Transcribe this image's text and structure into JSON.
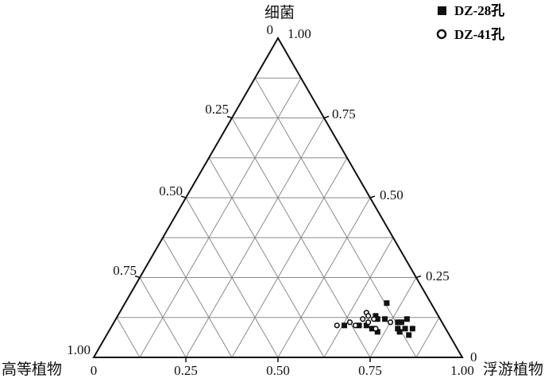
{
  "chart_data": {
    "type": "ternary-scatter",
    "apex_labels": {
      "top": "细菌",
      "left": "高等植物",
      "right": "浮游植物"
    },
    "ticks": {
      "bottom": [
        "0",
        "0.25",
        "0.50",
        "0.75",
        "1.00"
      ],
      "left_edge": [
        "0",
        "0.25",
        "0.50",
        "0.75",
        "1.00"
      ],
      "right_edge": [
        "1.00",
        "0.75",
        "0.50",
        "0.25",
        "0"
      ]
    },
    "grid": true,
    "legend_position": "top-right",
    "series": [
      {
        "name": "DZ-28孔",
        "marker": "filled-square",
        "points": [
          {
            "bacteria": 0.17,
            "phytoplankton": 0.71
          },
          {
            "bacteria": 0.13,
            "phytoplankton": 0.7
          },
          {
            "bacteria": 0.12,
            "phytoplankton": 0.71
          },
          {
            "bacteria": 0.12,
            "phytoplankton": 0.73
          },
          {
            "bacteria": 0.1,
            "phytoplankton": 0.63
          },
          {
            "bacteria": 0.1,
            "phytoplankton": 0.67
          },
          {
            "bacteria": 0.1,
            "phytoplankton": 0.69
          },
          {
            "bacteria": 0.09,
            "phytoplankton": 0.71
          },
          {
            "bacteria": 0.08,
            "phytoplankton": 0.73
          },
          {
            "bacteria": 0.11,
            "phytoplankton": 0.78
          },
          {
            "bacteria": 0.09,
            "phytoplankton": 0.78
          },
          {
            "bacteria": 0.09,
            "phytoplankton": 0.8
          },
          {
            "bacteria": 0.12,
            "phytoplankton": 0.79
          },
          {
            "bacteria": 0.08,
            "phytoplankton": 0.79
          },
          {
            "bacteria": 0.07,
            "phytoplankton": 0.82
          },
          {
            "bacteria": 0.09,
            "phytoplankton": 0.82
          },
          {
            "bacteria": 0.11,
            "phytoplankton": 0.77
          }
        ]
      },
      {
        "name": "DZ-41孔",
        "marker": "open-circle",
        "points": [
          {
            "bacteria": 0.14,
            "phytoplankton": 0.67
          },
          {
            "bacteria": 0.13,
            "phytoplankton": 0.68
          },
          {
            "bacteria": 0.12,
            "phytoplankton": 0.67
          },
          {
            "bacteria": 0.12,
            "phytoplankton": 0.7
          },
          {
            "bacteria": 0.11,
            "phytoplankton": 0.64
          },
          {
            "bacteria": 0.1,
            "phytoplankton": 0.66
          },
          {
            "bacteria": 0.1,
            "phytoplankton": 0.61
          },
          {
            "bacteria": 0.11,
            "phytoplankton": 0.75
          },
          {
            "bacteria": 0.09,
            "phytoplankton": 0.72
          },
          {
            "bacteria": 0.11,
            "phytoplankton": 0.69
          }
        ]
      }
    ]
  }
}
